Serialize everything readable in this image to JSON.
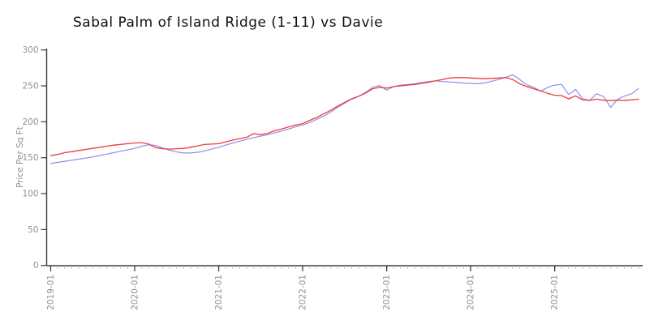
{
  "chart_data": {
    "type": "line",
    "title": "Sabal Palm of Island Ridge (1-11) vs Davie",
    "xlabel": "",
    "ylabel": "Price Per Sq Ft",
    "ylim": [
      0,
      300
    ],
    "yticks": [
      0,
      50,
      100,
      150,
      200,
      250,
      300
    ],
    "x_start": "2019-01",
    "x_end": "2026-01",
    "x_major_tick_labels": [
      "2019-01",
      "2020-01",
      "2021-01",
      "2022-01",
      "2023-01",
      "2024-01",
      "2025-01"
    ],
    "x_major_tick_month_indices": [
      0,
      12,
      24,
      36,
      48,
      60,
      72
    ],
    "grid": false,
    "legend": "none",
    "axis_color": "#3c3c3c",
    "tick_label_color": "#909090",
    "minor_tick_color": "#b3b3b3",
    "series": [
      {
        "name": "Sabal Palm of Island Ridge (1-11)",
        "color": "#8d8deb",
        "line_width": 1.2,
        "values": [
          142,
          143.5,
          145,
          146.5,
          148,
          149.5,
          151,
          153,
          155,
          157,
          159,
          161,
          163,
          166,
          168,
          167,
          163.5,
          160.5,
          158,
          156.5,
          156.5,
          157.5,
          159.5,
          162,
          164.5,
          167.5,
          170.5,
          173,
          175.5,
          178,
          180,
          182,
          184.5,
          187,
          190,
          193,
          195.5,
          199,
          203.5,
          208,
          213.5,
          220,
          226,
          231.5,
          235.5,
          241,
          248,
          250.5,
          244,
          249,
          251,
          252,
          253,
          254.5,
          256,
          257,
          256,
          255.5,
          255,
          254,
          253.5,
          253,
          254,
          256.5,
          259,
          262,
          265.5,
          259,
          251.5,
          248,
          242.5,
          248,
          251,
          252,
          238,
          245,
          232,
          230,
          239,
          235,
          220,
          231.5,
          236,
          239,
          246.5
        ]
      },
      {
        "name": "Davie",
        "color": "#ef3b3b",
        "line_width": 1.3,
        "values": [
          153,
          154.5,
          157,
          158.5,
          160,
          161.5,
          163,
          164.5,
          166,
          167.5,
          168.5,
          169.5,
          170.5,
          171,
          169,
          164,
          162.5,
          162,
          162.5,
          163,
          164.5,
          166.5,
          168.5,
          169,
          169.5,
          172,
          174.5,
          176.5,
          178.5,
          183.5,
          182,
          184,
          187.5,
          190,
          193,
          195.5,
          197.5,
          202,
          206,
          211,
          216,
          222,
          227,
          232,
          235.5,
          240,
          246,
          248,
          247,
          249,
          250,
          251,
          252,
          253.5,
          255,
          257,
          259,
          261,
          261.5,
          261.5,
          261,
          260.5,
          260,
          260.5,
          261,
          261.5,
          259,
          253,
          249,
          246,
          243,
          239.5,
          237,
          236.5,
          232,
          236,
          230.5,
          230,
          231.5,
          230,
          229.5,
          230,
          230,
          230.5,
          231.5
        ]
      }
    ]
  }
}
